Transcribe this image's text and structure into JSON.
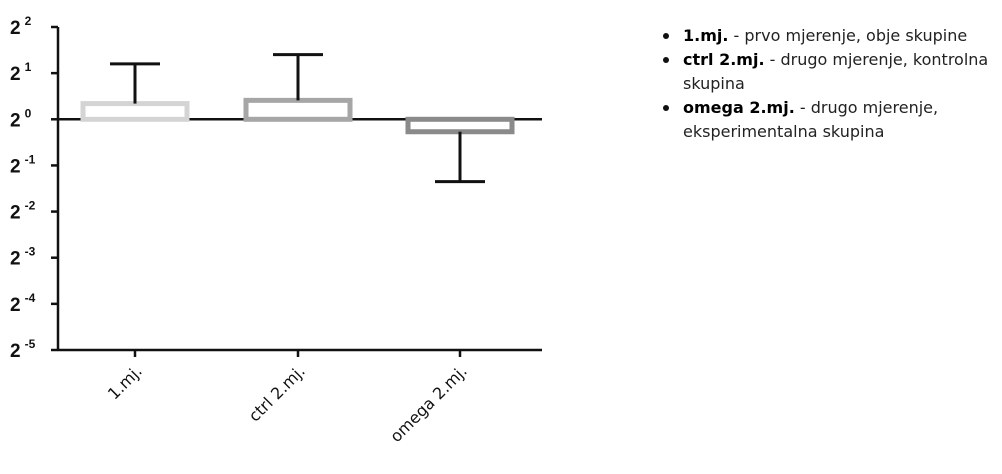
{
  "chart_data": {
    "type": "bar",
    "yscale": "log2",
    "ylim": [
      -5,
      2
    ],
    "yticks": [
      {
        "base": "2",
        "exp": "2",
        "value": 2
      },
      {
        "base": "2",
        "exp": "1",
        "value": 1
      },
      {
        "base": "2",
        "exp": "0",
        "value": 0
      },
      {
        "base": "2",
        "exp": "-1",
        "value": -1
      },
      {
        "base": "2",
        "exp": "-2",
        "value": -2
      },
      {
        "base": "2",
        "exp": "-3",
        "value": -3
      },
      {
        "base": "2",
        "exp": "-4",
        "value": -4
      },
      {
        "base": "2",
        "exp": "-5",
        "value": -5
      }
    ],
    "categories": [
      "1.mj.",
      "ctrl 2.mj.",
      "omega 2.mj."
    ],
    "values": [
      0.34,
      0.41,
      -0.27
    ],
    "error_upper": [
      1.2,
      1.4,
      -0.27
    ],
    "error_lower": [
      0.34,
      0.41,
      -1.35
    ],
    "bar_colors": [
      "#d4d4d4",
      "#a6a6a6",
      "#8a8a8a"
    ],
    "xlabel": "",
    "ylabel": "",
    "title": "",
    "grid": false
  },
  "legend": [
    {
      "term": "1.mj.",
      "text": " - prvo mjerenje, obje skupine"
    },
    {
      "term": "ctrl 2.mj.",
      "text": " - drugo mjerenje, kontrolna skupina"
    },
    {
      "term": "omega 2.mj.",
      "text": " - drugo mjerenje, eksperimentalna skupina"
    }
  ]
}
